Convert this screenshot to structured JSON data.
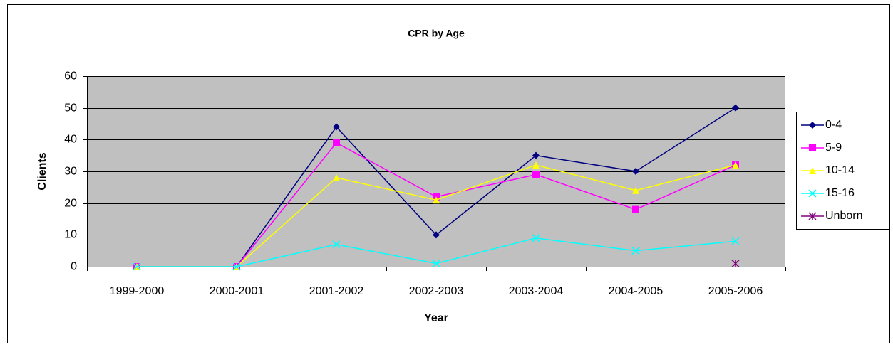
{
  "chart_data": {
    "type": "line",
    "title": "CPR by Age",
    "x_label": "Year",
    "y_label": "Clients",
    "categories": [
      "1999-2000",
      "2000-2001",
      "2001-2002",
      "2002-2003",
      "2003-2004",
      "2004-2005",
      "2005-2006"
    ],
    "series": [
      {
        "name": "0-4",
        "color": "#000080",
        "marker": "diamond",
        "values": [
          0,
          0,
          44,
          10,
          35,
          30,
          50
        ]
      },
      {
        "name": "5-9",
        "color": "#ff00ff",
        "marker": "square",
        "values": [
          0,
          0,
          39,
          22,
          29,
          18,
          32
        ]
      },
      {
        "name": "10-14",
        "color": "#ffff00",
        "marker": "triangle",
        "values": [
          0,
          0,
          28,
          21,
          32,
          24,
          32
        ]
      },
      {
        "name": "15-16",
        "color": "#00ffff",
        "marker": "x",
        "values": [
          0,
          0,
          7,
          1,
          9,
          5,
          8
        ]
      },
      {
        "name": "Unborn",
        "color": "#800080",
        "marker": "star",
        "values": [
          null,
          null,
          null,
          null,
          null,
          null,
          1
        ]
      }
    ],
    "ylim": [
      0,
      60
    ],
    "yticks": [
      0,
      10,
      20,
      30,
      40,
      50,
      60
    ],
    "grid": true,
    "plot_background": "#c0c0c0",
    "legend": "right"
  }
}
